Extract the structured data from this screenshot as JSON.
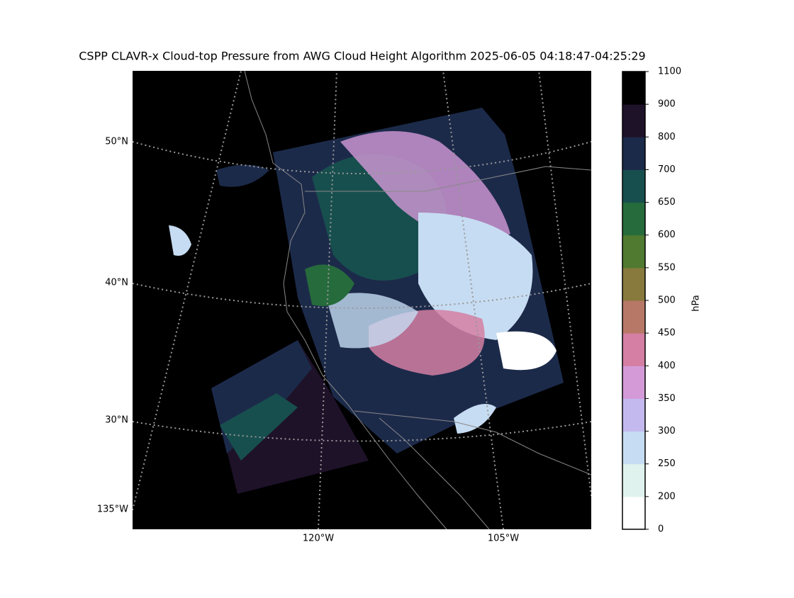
{
  "title": "CSPP CLAVR-x Cloud-top Pressure from AWG Cloud Height Algorithm 2025-06-05 04:18:47-04:25:29",
  "map": {
    "lat_labels": [
      "50°N",
      "40°N",
      "30°N"
    ],
    "lon_labels": [
      "135°W",
      "120°W",
      "105°W"
    ]
  },
  "colorbar": {
    "label": "hPa",
    "ticks": [
      0,
      200,
      250,
      300,
      350,
      400,
      450,
      500,
      550,
      600,
      650,
      700,
      800,
      900,
      1100
    ],
    "colors": [
      "#ffffff",
      "#dff2ee",
      "#c6dcf2",
      "#c4b9ef",
      "#d49ad8",
      "#d47fa3",
      "#b87868",
      "#877a3c",
      "#4f7a30",
      "#266b3c",
      "#174f4e",
      "#1c2a4a",
      "#1e1229",
      "#000000"
    ]
  }
}
